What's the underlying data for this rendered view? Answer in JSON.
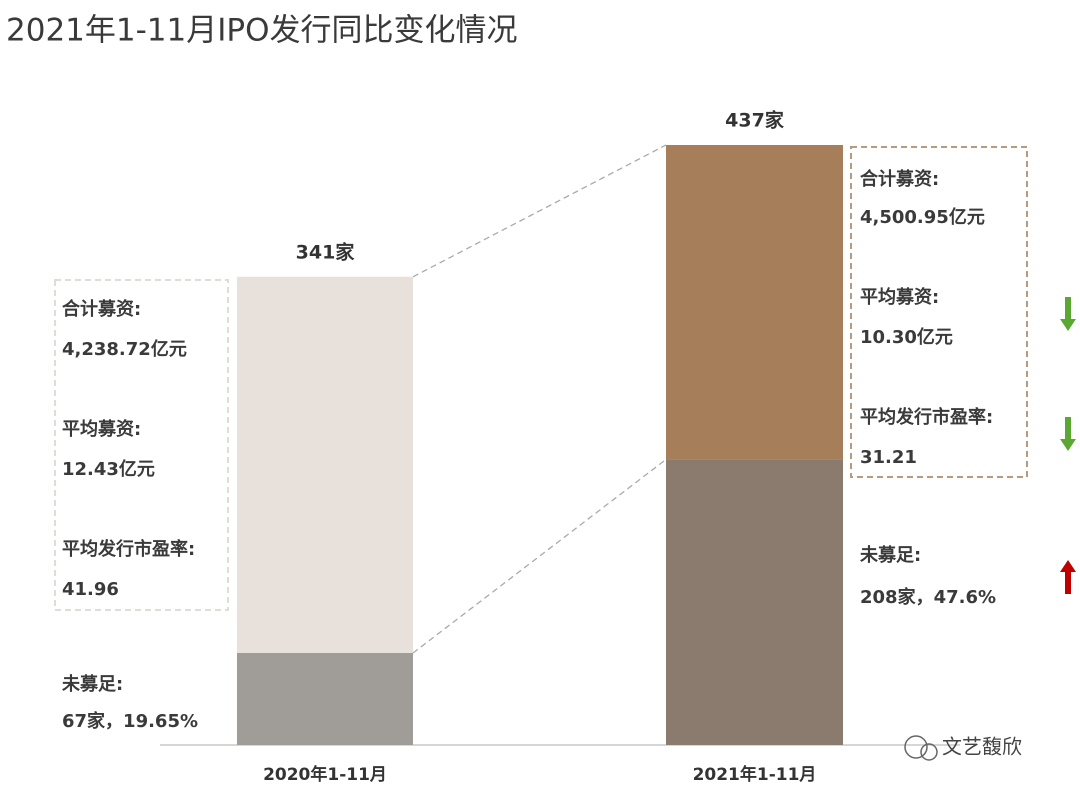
{
  "chart_data": {
    "type": "stacked_bar",
    "title": "2021年1-11月IPO发行同比变化情况",
    "categories": [
      "2020年1-11月",
      "2021年1-11月"
    ],
    "series": [
      {
        "colors": [
          "#a09d98",
          "#8a7b6e"
        ],
        "values": [
          67,
          208
        ]
      },
      {
        "colors": [
          "#e8e0da",
          "#a67f5a"
        ],
        "values": [
          274,
          229
        ]
      }
    ],
    "totals": [
      341,
      437
    ],
    "total_labels": [
      "341家",
      "437家"
    ],
    "notes": [
      {
        "summary": [
          "合计募资:",
          "4,238.72亿元",
          "平均募资:",
          "12.43亿元",
          "平均发行市盈率:",
          "41.96"
        ],
        "shortfall": [
          "未募足:",
          "67家，19.65%"
        ]
      },
      {
        "summary": [
          "合计募资:",
          "4,500.95亿元",
          "平均募资:",
          "10.30亿元",
          "平均发行市盈率:",
          "31.21"
        ],
        "shortfall": [
          "未募足:",
          "208家，47.6%"
        ],
        "arrows": [
          "down",
          "down",
          "up"
        ]
      }
    ]
  },
  "watermark": "文艺馥欣"
}
